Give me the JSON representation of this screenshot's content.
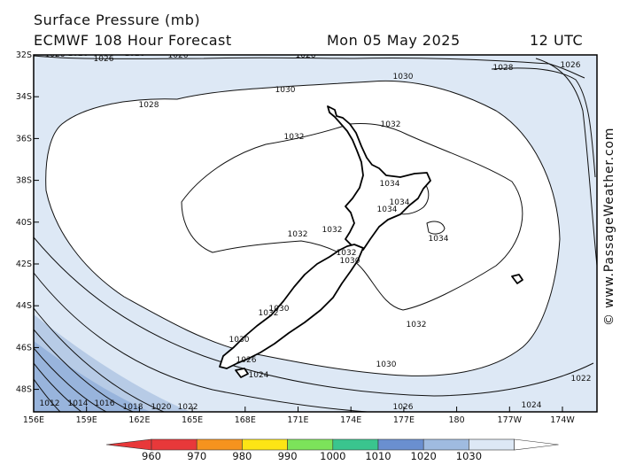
{
  "header": {
    "title": "Surface Pressure (mb)",
    "model": "ECMWF 108 Hour Forecast",
    "date": "Mon 05 May 2025",
    "time": "12 UTC"
  },
  "credit": "© www.PassageWeather.com",
  "map": {
    "lat_labels": [
      "32S",
      "34S",
      "36S",
      "38S",
      "40S",
      "42S",
      "44S",
      "46S",
      "48S"
    ],
    "lon_labels": [
      "156E",
      "159E",
      "162E",
      "165E",
      "168E",
      "171E",
      "174E",
      "177E",
      "180",
      "177W",
      "174W"
    ],
    "isobar_labels": [
      "1026",
      "1026",
      "1026",
      "1026",
      "1026",
      "1026",
      "1028",
      "1026",
      "1030",
      "1030",
      "1028",
      "1032",
      "1032",
      "1034",
      "1034",
      "1034",
      "1034",
      "1032",
      "1032",
      "1032",
      "1030",
      "1032",
      "1030",
      "1032",
      "1030",
      "1026",
      "1030",
      "1024",
      "1026",
      "1024",
      "1022",
      "1012",
      "1014",
      "1016",
      "1018",
      "1020",
      "1022"
    ]
  },
  "legend": {
    "values": [
      "960",
      "970",
      "980",
      "990",
      "1000",
      "1010",
      "1020",
      "1030"
    ],
    "colors": [
      "#e8383a",
      "#f6931e",
      "#fde515",
      "#7ce35a",
      "#3ac58e",
      "#6a8fd0",
      "#9fbbe0",
      "#dde8f5"
    ]
  },
  "colors": {
    "band_1030": "#ffffff",
    "band_1020": "#dde8f5",
    "band_1015": "#b7cbe6",
    "band_1010": "#98b4dc",
    "isobar": "#111111"
  }
}
